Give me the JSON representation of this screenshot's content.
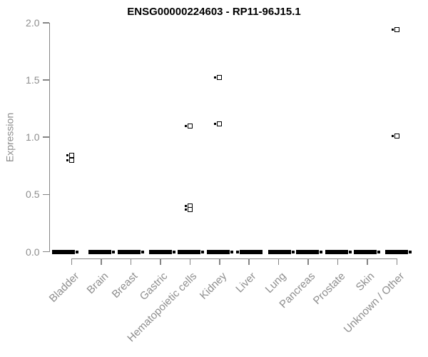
{
  "chart_data": {
    "type": "scatter",
    "title": "ENSG00000224603 - RP11-96J15.1",
    "ylabel": "Expression",
    "xlabel": "",
    "ylim": [
      0.0,
      2.0
    ],
    "yticks": [
      0.0,
      0.5,
      1.0,
      1.5,
      2.0
    ],
    "categories": [
      "Bladder",
      "Brain",
      "Breast",
      "Gastric",
      "Hematopoietic cells",
      "Kidney",
      "Liver",
      "Lung",
      "Pancreas",
      "Prostate",
      "Skin",
      "Unknown / Other"
    ],
    "points": [
      {
        "category": "Bladder",
        "value": 0.84
      },
      {
        "category": "Bladder",
        "value": 0.8
      },
      {
        "category": "Hematopoietic cells",
        "value": 1.1
      },
      {
        "category": "Hematopoietic cells",
        "value": 0.4
      },
      {
        "category": "Hematopoietic cells",
        "value": 0.37
      },
      {
        "category": "Kidney",
        "value": 1.52
      },
      {
        "category": "Kidney",
        "value": 1.12
      },
      {
        "category": "Unknown / Other",
        "value": 1.94
      },
      {
        "category": "Unknown / Other",
        "value": 1.01
      }
    ],
    "zero_clusters": {
      "note": "Every category shows a dense horizontal cluster of many overlapping points at expression 0.0",
      "categories": [
        "Bladder",
        "Brain",
        "Breast",
        "Gastric",
        "Hematopoietic cells",
        "Kidney",
        "Liver",
        "Lung",
        "Pancreas",
        "Prostate",
        "Skin",
        "Unknown / Other"
      ],
      "value": 0.0
    },
    "marker": "open-square",
    "legend": "none",
    "grid": false,
    "colors": {
      "points": "#000000",
      "axis": "#858585",
      "axis_text": "#8e8e8e",
      "title": "#000000",
      "background": "#ffffff"
    }
  }
}
